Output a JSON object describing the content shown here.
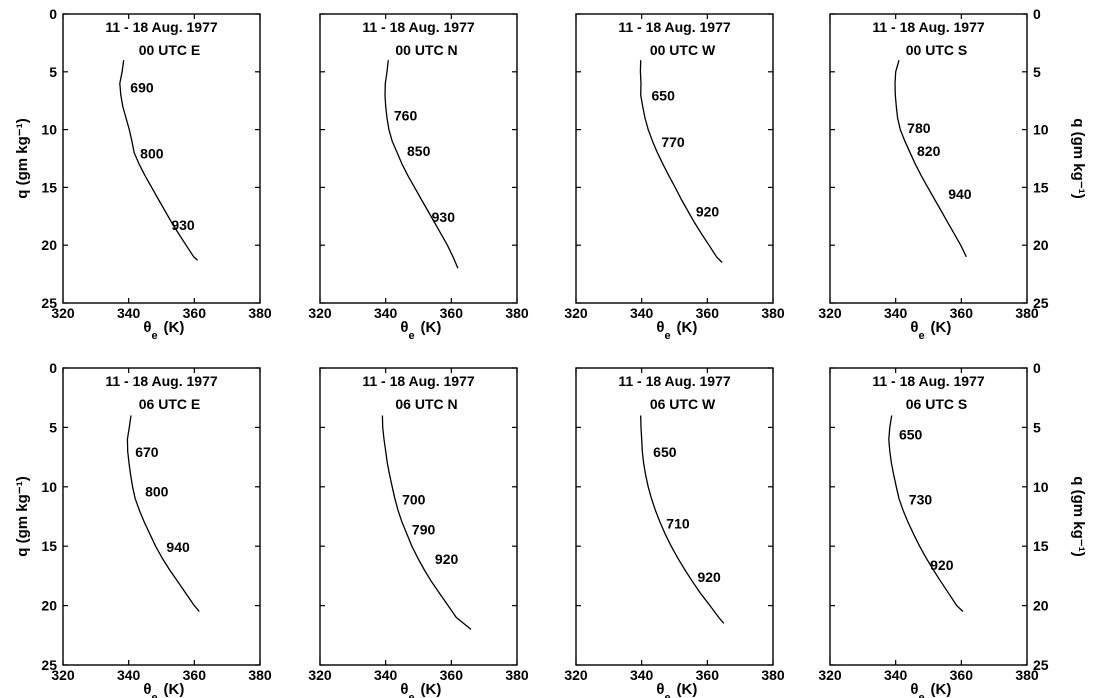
{
  "chart_data": [
    {
      "type": "line",
      "title": "11 - 18 Aug. 1977",
      "subtitle": "00 UTC  E",
      "xlim": [
        320,
        380
      ],
      "ylim": [
        0,
        25
      ],
      "y_inverted": true,
      "xticks": [
        "320",
        "340",
        "360",
        "380"
      ],
      "yticks": [
        "0",
        "5",
        "10",
        "15",
        "20",
        "25"
      ],
      "series": [
        {
          "values": [
            [
              338.5,
              4.0
            ],
            [
              338.0,
              5.0
            ],
            [
              337.3,
              6.0
            ],
            [
              337.6,
              7.0
            ],
            [
              338.2,
              8.0
            ],
            [
              339.2,
              9.0
            ],
            [
              340.2,
              10.0
            ],
            [
              341.0,
              11.0
            ],
            [
              341.7,
              12.0
            ],
            [
              343.2,
              13.0
            ],
            [
              345.0,
              14.0
            ],
            [
              347.0,
              15.0
            ],
            [
              349.0,
              16.0
            ],
            [
              351.0,
              17.0
            ],
            [
              353.0,
              18.0
            ],
            [
              355.2,
              19.0
            ],
            [
              357.5,
              20.0
            ],
            [
              359.8,
              21.0
            ],
            [
              361.0,
              21.3
            ]
          ]
        }
      ],
      "annotations": [
        {
          "text": "690",
          "x": 340.5,
          "y": 6.8
        },
        {
          "text": "800",
          "x": 343.5,
          "y": 12.5
        },
        {
          "text": "930",
          "x": 353.0,
          "y": 18.7
        }
      ]
    },
    {
      "type": "line",
      "title": "11 - 18 Aug. 1977",
      "subtitle": "00 UTC  N",
      "xlim": [
        320,
        380
      ],
      "ylim": [
        0,
        25
      ],
      "y_inverted": true,
      "xticks": [
        "320",
        "340",
        "360",
        "380"
      ],
      "yticks": [],
      "series": [
        {
          "values": [
            [
              340.8,
              4.0
            ],
            [
              340.4,
              5.0
            ],
            [
              339.9,
              6.0
            ],
            [
              339.8,
              7.0
            ],
            [
              340.0,
              8.0
            ],
            [
              340.4,
              9.0
            ],
            [
              341.0,
              10.0
            ],
            [
              342.0,
              11.0
            ],
            [
              343.5,
              12.0
            ],
            [
              345.0,
              13.0
            ],
            [
              346.8,
              14.0
            ],
            [
              348.8,
              15.0
            ],
            [
              350.8,
              16.0
            ],
            [
              352.8,
              17.0
            ],
            [
              354.8,
              18.0
            ],
            [
              356.8,
              19.0
            ],
            [
              358.8,
              20.0
            ],
            [
              360.5,
              21.0
            ],
            [
              362.0,
              22.0
            ]
          ]
        }
      ],
      "annotations": [
        {
          "text": "760",
          "x": 342.5,
          "y": 9.2
        },
        {
          "text": "850",
          "x": 346.5,
          "y": 12.3
        },
        {
          "text": "930",
          "x": 354.0,
          "y": 18.0
        }
      ]
    },
    {
      "type": "line",
      "title": "11 - 18 Aug. 1977",
      "subtitle": "00 UTC  W",
      "xlim": [
        320,
        380
      ],
      "ylim": [
        0,
        25
      ],
      "y_inverted": true,
      "xticks": [
        "320",
        "340",
        "360",
        "380"
      ],
      "yticks": [],
      "series": [
        {
          "values": [
            [
              339.7,
              4.0
            ],
            [
              339.6,
              5.0
            ],
            [
              339.8,
              6.0
            ],
            [
              339.7,
              7.0
            ],
            [
              340.3,
              8.0
            ],
            [
              341.0,
              9.0
            ],
            [
              342.0,
              10.0
            ],
            [
              343.3,
              11.0
            ],
            [
              344.8,
              12.0
            ],
            [
              346.5,
              13.0
            ],
            [
              348.3,
              14.0
            ],
            [
              350.2,
              15.0
            ],
            [
              352.0,
              16.0
            ],
            [
              354.0,
              17.0
            ],
            [
              356.0,
              18.0
            ],
            [
              358.2,
              19.0
            ],
            [
              360.5,
              20.0
            ],
            [
              362.8,
              21.0
            ],
            [
              364.5,
              21.5
            ]
          ]
        }
      ],
      "annotations": [
        {
          "text": "650",
          "x": 343.0,
          "y": 7.5
        },
        {
          "text": "770",
          "x": 346.0,
          "y": 11.5
        },
        {
          "text": "920",
          "x": 356.5,
          "y": 17.5
        }
      ]
    },
    {
      "type": "line",
      "title": "11 - 18 Aug. 1977",
      "subtitle": "00 UTC  S",
      "xlim": [
        320,
        380
      ],
      "ylim": [
        0,
        25
      ],
      "y_inverted": true,
      "xticks": [
        "320",
        "340",
        "360",
        "380"
      ],
      "yticks": [
        "0",
        "5",
        "10",
        "15",
        "20",
        "25"
      ],
      "ylabel": "q (gm kg⁻¹)",
      "series": [
        {
          "values": [
            [
              341.0,
              4.0
            ],
            [
              340.0,
              5.0
            ],
            [
              339.8,
              6.0
            ],
            [
              339.9,
              7.0
            ],
            [
              340.2,
              8.0
            ],
            [
              340.6,
              9.0
            ],
            [
              341.4,
              10.0
            ],
            [
              342.8,
              11.0
            ],
            [
              344.4,
              12.0
            ],
            [
              346.0,
              13.0
            ],
            [
              347.8,
              14.0
            ],
            [
              349.8,
              15.0
            ],
            [
              351.8,
              16.0
            ],
            [
              353.8,
              17.0
            ],
            [
              355.8,
              18.0
            ],
            [
              357.8,
              19.0
            ],
            [
              359.8,
              20.0
            ],
            [
              361.5,
              21.0
            ]
          ]
        }
      ],
      "annotations": [
        {
          "text": "780",
          "x": 343.5,
          "y": 10.3
        },
        {
          "text": "820",
          "x": 346.5,
          "y": 12.3
        },
        {
          "text": "940",
          "x": 356.0,
          "y": 16.0
        }
      ]
    },
    {
      "type": "line",
      "title": "11 - 18 Aug. 1977",
      "subtitle": "06 UTC  E",
      "xlim": [
        320,
        380
      ],
      "ylim": [
        0,
        25
      ],
      "y_inverted": true,
      "xticks": [
        "320",
        "340",
        "360",
        "380"
      ],
      "yticks": [
        "0",
        "5",
        "10",
        "15",
        "20",
        "25"
      ],
      "series": [
        {
          "values": [
            [
              340.7,
              4.0
            ],
            [
              340.2,
              5.0
            ],
            [
              339.6,
              6.0
            ],
            [
              339.7,
              7.0
            ],
            [
              340.1,
              8.0
            ],
            [
              340.6,
              9.0
            ],
            [
              341.2,
              10.0
            ],
            [
              342.0,
              11.0
            ],
            [
              343.3,
              12.0
            ],
            [
              344.8,
              13.0
            ],
            [
              346.5,
              14.0
            ],
            [
              348.2,
              15.0
            ],
            [
              350.2,
              16.0
            ],
            [
              352.5,
              17.0
            ],
            [
              355.0,
              18.0
            ],
            [
              357.5,
              19.0
            ],
            [
              360.0,
              20.0
            ],
            [
              361.5,
              20.5
            ]
          ]
        }
      ],
      "annotations": [
        {
          "text": "670",
          "x": 342.0,
          "y": 7.5
        },
        {
          "text": "800",
          "x": 345.0,
          "y": 10.8
        },
        {
          "text": "940",
          "x": 351.5,
          "y": 15.5
        }
      ]
    },
    {
      "type": "line",
      "title": "11 - 18 Aug. 1977",
      "subtitle": "06 UTC  N",
      "xlim": [
        320,
        380
      ],
      "ylim": [
        0,
        25
      ],
      "y_inverted": true,
      "xticks": [
        "320",
        "340",
        "360",
        "380"
      ],
      "yticks": [],
      "series": [
        {
          "values": [
            [
              339.0,
              4.0
            ],
            [
              339.1,
              5.0
            ],
            [
              339.5,
              6.0
            ],
            [
              340.0,
              7.0
            ],
            [
              340.5,
              8.0
            ],
            [
              341.2,
              9.0
            ],
            [
              342.0,
              10.0
            ],
            [
              342.8,
              11.0
            ],
            [
              343.8,
              12.0
            ],
            [
              345.0,
              13.0
            ],
            [
              346.5,
              14.0
            ],
            [
              348.0,
              15.0
            ],
            [
              349.8,
              16.0
            ],
            [
              351.8,
              17.0
            ],
            [
              354.0,
              18.0
            ],
            [
              356.5,
              19.0
            ],
            [
              359.0,
              20.0
            ],
            [
              361.5,
              21.0
            ],
            [
              366.0,
              22.0
            ]
          ]
        }
      ],
      "annotations": [
        {
          "text": "700",
          "x": 345.0,
          "y": 11.5
        },
        {
          "text": "790",
          "x": 348.0,
          "y": 14.0
        },
        {
          "text": "920",
          "x": 355.0,
          "y": 16.5
        }
      ]
    },
    {
      "type": "line",
      "title": "11 - 18 Aug. 1977",
      "subtitle": "06 UTC  W",
      "xlim": [
        320,
        380
      ],
      "ylim": [
        0,
        25
      ],
      "y_inverted": true,
      "xticks": [
        "320",
        "340",
        "360",
        "380"
      ],
      "yticks": [],
      "series": [
        {
          "values": [
            [
              339.7,
              4.0
            ],
            [
              339.8,
              5.0
            ],
            [
              340.0,
              6.0
            ],
            [
              340.2,
              7.0
            ],
            [
              340.6,
              8.0
            ],
            [
              341.2,
              9.0
            ],
            [
              342.0,
              10.0
            ],
            [
              343.0,
              11.0
            ],
            [
              344.2,
              12.0
            ],
            [
              345.6,
              13.0
            ],
            [
              347.2,
              14.0
            ],
            [
              349.0,
              15.0
            ],
            [
              351.0,
              16.0
            ],
            [
              353.2,
              17.0
            ],
            [
              355.5,
              18.0
            ],
            [
              358.0,
              19.0
            ],
            [
              360.8,
              20.0
            ],
            [
              363.5,
              21.0
            ],
            [
              365.0,
              21.5
            ]
          ]
        }
      ],
      "annotations": [
        {
          "text": "650",
          "x": 343.5,
          "y": 7.5
        },
        {
          "text": "710",
          "x": 347.5,
          "y": 13.5
        },
        {
          "text": "920",
          "x": 357.0,
          "y": 18.0
        }
      ]
    },
    {
      "type": "line",
      "title": "11 - 18 Aug. 1977",
      "subtitle": "06 UTC  S",
      "xlim": [
        320,
        380
      ],
      "ylim": [
        0,
        25
      ],
      "y_inverted": true,
      "xticks": [
        "320",
        "340",
        "360",
        "380"
      ],
      "yticks": [
        "0",
        "5",
        "10",
        "15",
        "20",
        "25"
      ],
      "ylabel": "q (gm kg⁻¹)",
      "series": [
        {
          "values": [
            [
              338.8,
              4.0
            ],
            [
              338.2,
              5.0
            ],
            [
              337.9,
              6.0
            ],
            [
              338.2,
              7.0
            ],
            [
              338.7,
              8.0
            ],
            [
              339.4,
              9.0
            ],
            [
              340.2,
              10.0
            ],
            [
              341.0,
              11.0
            ],
            [
              342.3,
              12.0
            ],
            [
              343.8,
              13.0
            ],
            [
              345.5,
              14.0
            ],
            [
              347.3,
              15.0
            ],
            [
              349.3,
              16.0
            ],
            [
              351.5,
              17.0
            ],
            [
              353.8,
              18.0
            ],
            [
              356.2,
              19.0
            ],
            [
              358.6,
              20.0
            ],
            [
              360.5,
              20.5
            ]
          ]
        }
      ],
      "annotations": [
        {
          "text": "650",
          "x": 341.0,
          "y": 6.0
        },
        {
          "text": "730",
          "x": 344.0,
          "y": 11.5
        },
        {
          "text": "920",
          "x": 350.5,
          "y": 17.0
        }
      ]
    }
  ],
  "shared": {
    "xlabel_main": "θ",
    "xlabel_sub": "e",
    "xlabel_unit": "(K)",
    "ylabel_left": "q (gm kg⁻¹)"
  }
}
